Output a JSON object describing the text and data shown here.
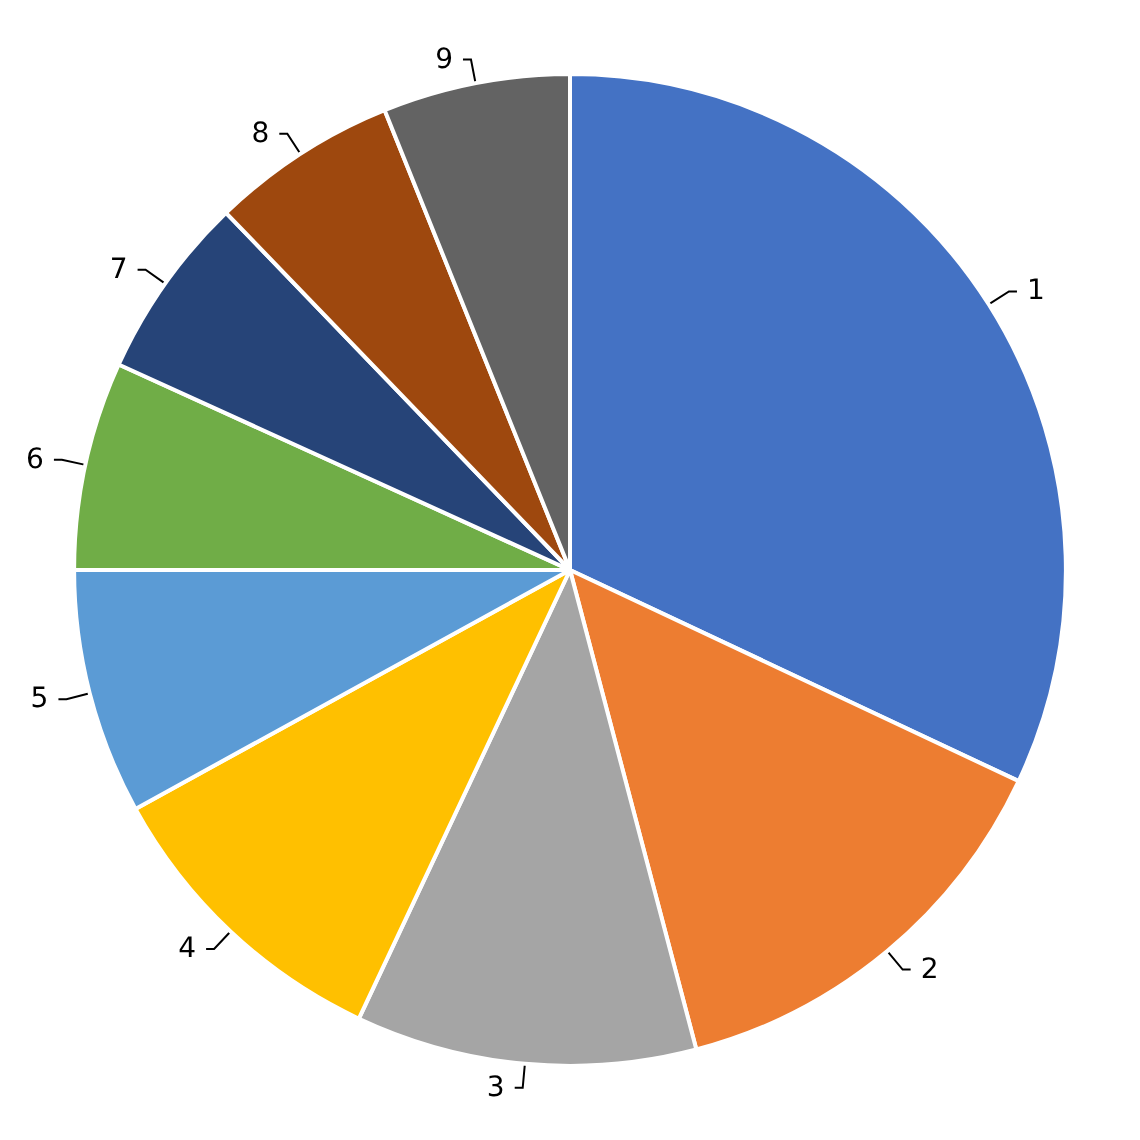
{
  "chart_data": {
    "type": "pie",
    "categories": [
      "1",
      "2",
      "3",
      "4",
      "5",
      "6",
      "7",
      "8",
      "9"
    ],
    "values": [
      32,
      13.9,
      11.1,
      10,
      8,
      6.8,
      6,
      6.1,
      6.1
    ],
    "colors": [
      "#4472c4",
      "#ed7d31",
      "#a5a5a5",
      "#ffc000",
      "#5b9bd5",
      "#70ad47",
      "#264478",
      "#9e480e",
      "#636363"
    ],
    "legend": false
  }
}
